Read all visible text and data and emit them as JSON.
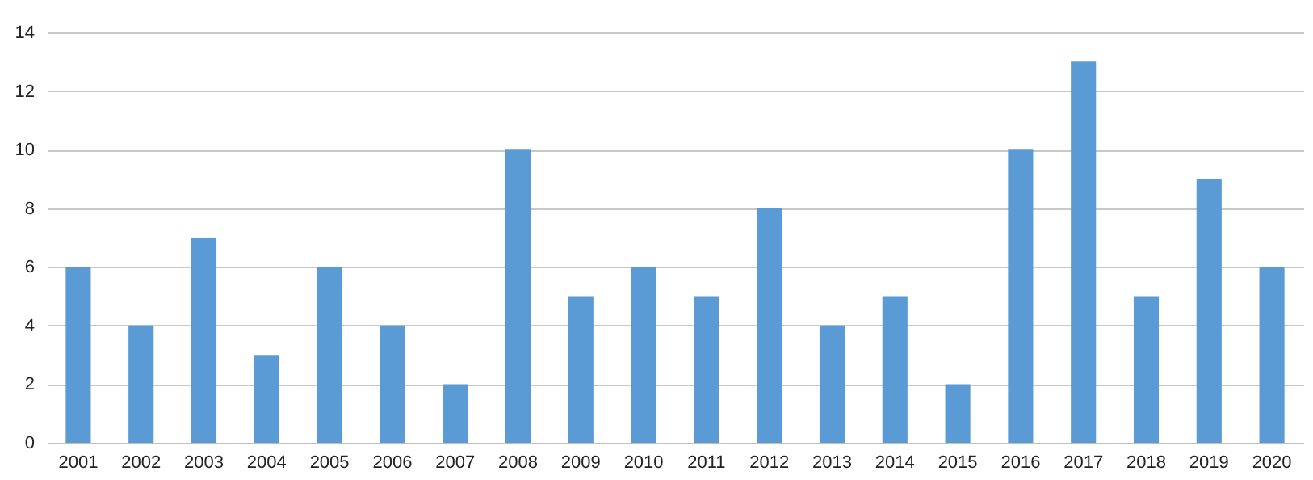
{
  "chart_data": {
    "type": "bar",
    "categories": [
      "2001",
      "2002",
      "2003",
      "2004",
      "2005",
      "2006",
      "2007",
      "2008",
      "2009",
      "2010",
      "2011",
      "2012",
      "2013",
      "2014",
      "2015",
      "2016",
      "2017",
      "2018",
      "2019",
      "2020"
    ],
    "values": [
      6,
      4,
      7,
      3,
      6,
      4,
      2,
      10,
      5,
      6,
      5,
      8,
      4,
      5,
      2,
      10,
      13,
      5,
      9,
      6
    ],
    "color": "#5b9bd5",
    "ylim": [
      0,
      14
    ],
    "yticks": [
      0,
      2,
      4,
      6,
      8,
      10,
      12,
      14
    ],
    "grid": "y"
  }
}
